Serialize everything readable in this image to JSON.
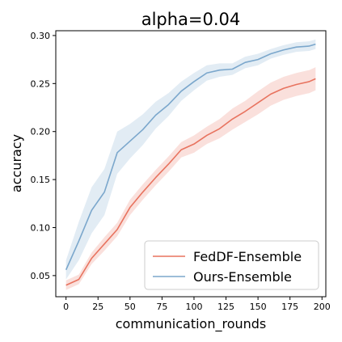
{
  "chart_data": {
    "type": "line",
    "title": "alpha=0.04",
    "xlabel": "communication_rounds",
    "ylabel": "accuracy",
    "xlim": [
      -8,
      203
    ],
    "ylim": [
      0.028,
      0.305
    ],
    "xticks": [
      0,
      25,
      50,
      75,
      100,
      125,
      150,
      175,
      200
    ],
    "yticks": [
      0.05,
      0.1,
      0.15,
      0.2,
      0.25,
      0.3
    ],
    "ytick_labels": [
      "0.05",
      "0.10",
      "0.15",
      "0.20",
      "0.25",
      "0.30"
    ],
    "legend_position": "lower-right",
    "x": [
      0,
      10,
      20,
      30,
      40,
      50,
      60,
      70,
      80,
      90,
      100,
      110,
      120,
      130,
      140,
      150,
      160,
      170,
      180,
      190,
      195
    ],
    "series": [
      {
        "name": "FedDF-Ensemble",
        "color": "#e8735f",
        "values": [
          0.04,
          0.046,
          0.068,
          0.083,
          0.098,
          0.121,
          0.137,
          0.152,
          0.166,
          0.181,
          0.187,
          0.196,
          0.203,
          0.213,
          0.221,
          0.23,
          0.239,
          0.245,
          0.249,
          0.252,
          0.255
        ],
        "band": [
          0.005,
          0.005,
          0.006,
          0.007,
          0.007,
          0.008,
          0.008,
          0.008,
          0.008,
          0.008,
          0.009,
          0.009,
          0.01,
          0.011,
          0.011,
          0.012,
          0.012,
          0.012,
          0.012,
          0.012,
          0.012
        ]
      },
      {
        "name": "Ours-Ensemble",
        "color": "#7ba7cc",
        "values": [
          0.056,
          0.086,
          0.118,
          0.137,
          0.178,
          0.19,
          0.202,
          0.217,
          0.228,
          0.242,
          0.252,
          0.261,
          0.264,
          0.265,
          0.272,
          0.275,
          0.281,
          0.285,
          0.288,
          0.289,
          0.291
        ],
        "band": [
          0.01,
          0.02,
          0.024,
          0.024,
          0.022,
          0.018,
          0.016,
          0.014,
          0.012,
          0.01,
          0.009,
          0.008,
          0.007,
          0.006,
          0.006,
          0.006,
          0.005,
          0.005,
          0.005,
          0.005,
          0.005
        ]
      }
    ]
  }
}
